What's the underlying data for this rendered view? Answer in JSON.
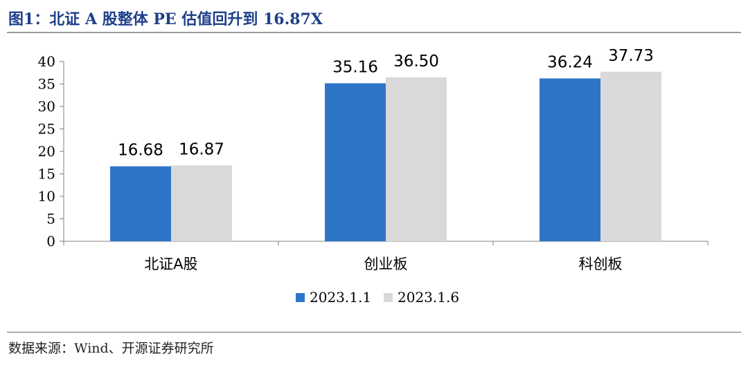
{
  "title": "图1：北证 A 股整体 PE 估值回升到 16.87X",
  "source": "数据来源：Wind、开源证券研究所",
  "colors": {
    "series1": "#2e75c8",
    "series2": "#d9d9d9",
    "title": "#1f3f8a"
  },
  "chart_data": {
    "type": "bar",
    "categories": [
      "北证A股",
      "创业板",
      "科创板"
    ],
    "series": [
      {
        "name": "2023.1.1",
        "values": [
          16.68,
          35.16,
          36.24
        ]
      },
      {
        "name": "2023.1.6",
        "values": [
          16.87,
          36.5,
          37.73
        ]
      }
    ],
    "data_labels": [
      [
        "16.68",
        "35.16",
        "36.24"
      ],
      [
        "16.87",
        "36.50",
        "37.73"
      ]
    ],
    "yticks": [
      "0",
      "5",
      "10",
      "15",
      "20",
      "25",
      "30",
      "35",
      "40"
    ],
    "ylim": [
      0,
      40
    ],
    "legend_position": "bottom",
    "grid": false
  }
}
